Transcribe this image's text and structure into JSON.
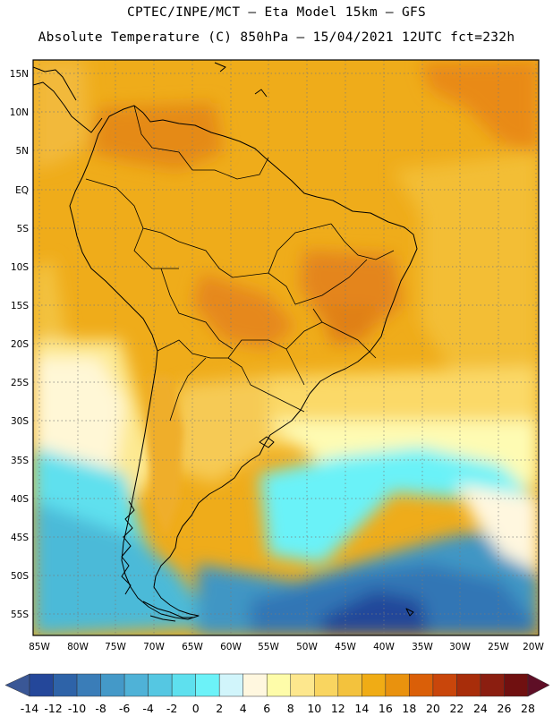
{
  "header": {
    "line1": "CPTEC/INPE/MCT –  Eta Model 15km – GFS",
    "line2": "Absolute Temperature (C) 850hPa – 15/04/2021 12UTC fct=232h"
  },
  "map": {
    "lat_labels": [
      "15N",
      "10N",
      "5N",
      "EQ",
      "5S",
      "10S",
      "15S",
      "20S",
      "25S",
      "30S",
      "35S",
      "40S",
      "45S",
      "50S",
      "55S"
    ],
    "lon_labels": [
      "85W",
      "80W",
      "75W",
      "70W",
      "65W",
      "60W",
      "55W",
      "50W",
      "45W",
      "40W",
      "35W",
      "30W",
      "25W",
      "20W"
    ],
    "lat_range": [
      17.5,
      -58
    ],
    "lon_range": [
      -86,
      -20
    ],
    "grid": "dotted",
    "variable": "Absolute Temperature",
    "units": "C",
    "level": "850hPa"
  },
  "colorbar": {
    "levels": [
      "-14",
      "-12",
      "-10",
      "-8",
      "-6",
      "-4",
      "-2",
      "0",
      "2",
      "4",
      "6",
      "8",
      "10",
      "12",
      "14",
      "16",
      "18",
      "20",
      "22",
      "24",
      "26",
      "28"
    ],
    "colors": [
      "#3a5796",
      "#24479a",
      "#2e63a8",
      "#3a7db8",
      "#4499c8",
      "#4fb2d7",
      "#55c7e2",
      "#5ee0ee",
      "#6cf2f8",
      "#d1f5fb",
      "#fff7df",
      "#fefca9",
      "#fde78d",
      "#f9d560",
      "#f3c23d",
      "#f0ac15",
      "#e9920e",
      "#da5f08",
      "#c9460b",
      "#a82d0a",
      "#8b1e10",
      "#701010",
      "#5e0e26"
    ]
  }
}
